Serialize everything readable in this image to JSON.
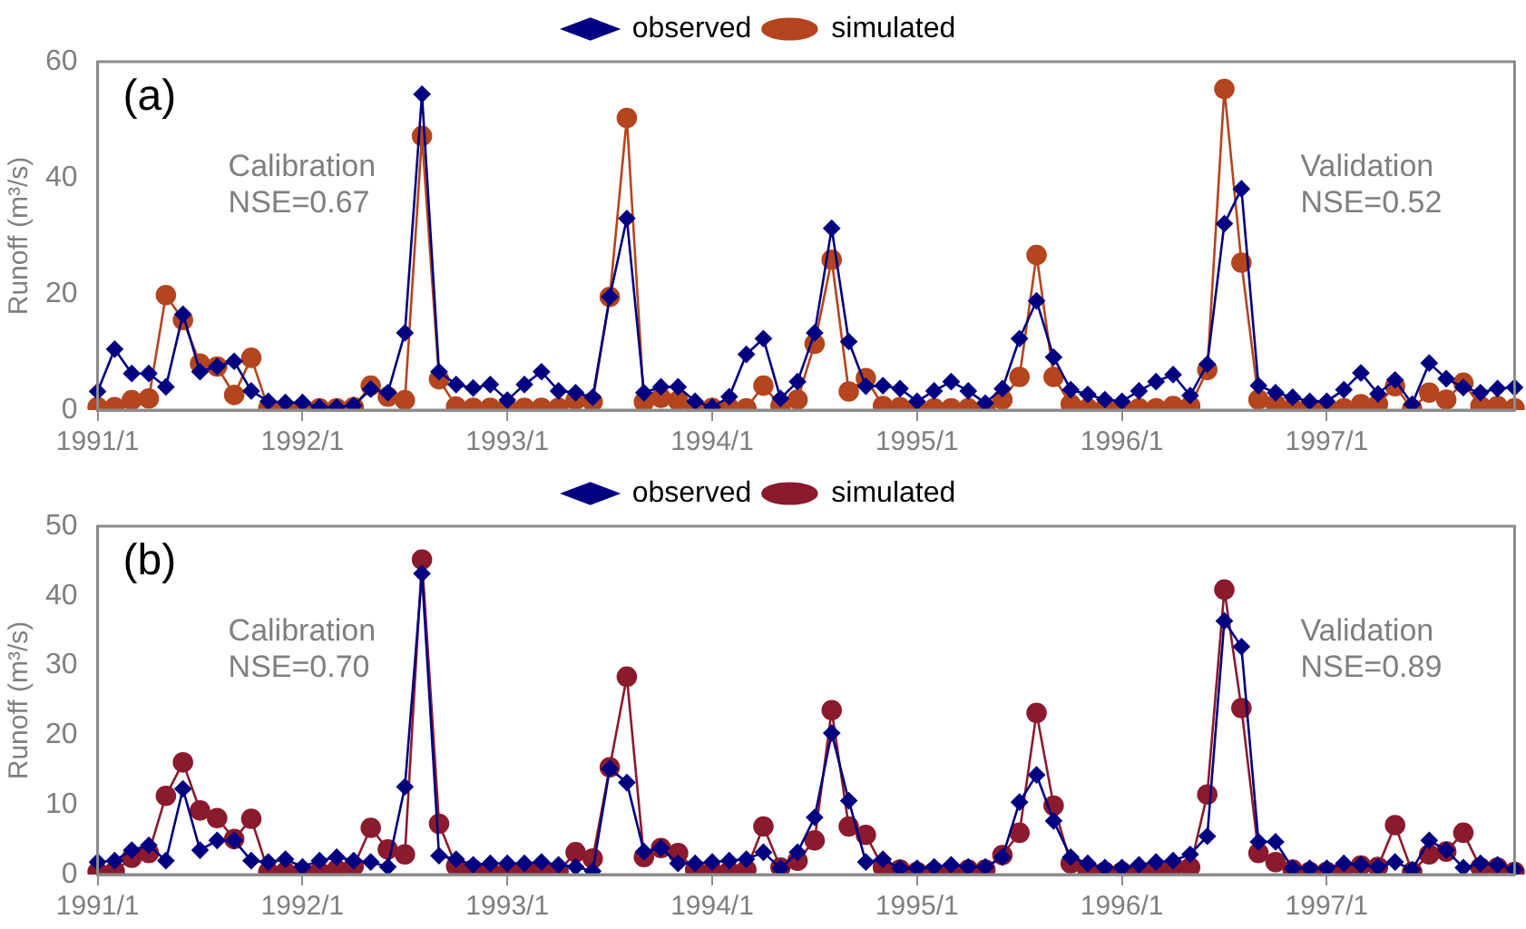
{
  "chart_data": [
    {
      "type": "line",
      "ylabel": "Runoff (m³/s)",
      "legend": "top",
      "grid": false,
      "ylim": [
        0,
        60
      ],
      "yticks": [
        0,
        20,
        40,
        60
      ],
      "categories": [
        "1991/1",
        null,
        null,
        null,
        null,
        null,
        null,
        null,
        null,
        null,
        null,
        null,
        "1992/1",
        null,
        null,
        null,
        null,
        null,
        null,
        null,
        null,
        null,
        null,
        null,
        "1993/1",
        null,
        null,
        null,
        null,
        null,
        null,
        null,
        null,
        null,
        null,
        null,
        "1994/1",
        null,
        null,
        null,
        null,
        null,
        null,
        null,
        null,
        null,
        null,
        null,
        "1995/1",
        null,
        null,
        null,
        null,
        null,
        null,
        null,
        null,
        null,
        null,
        null,
        "1996/1",
        null,
        null,
        null,
        null,
        null,
        null,
        null,
        null,
        null,
        null,
        null,
        "1997/1",
        null,
        null,
        null,
        null,
        null,
        null,
        null,
        null,
        null,
        null,
        null
      ],
      "annotations": [
        "(a)",
        "Calibration\nNSE=0.67",
        "Validation\nNSE=0.52"
      ],
      "series": [
        {
          "name": "observed",
          "color": "#000080",
          "marker": "diamond",
          "values": [
            3.2,
            10.5,
            6.3,
            6.3,
            4,
            16.5,
            6.6,
            7.5,
            8.4,
            3.3,
            1.5,
            1.3,
            1.3,
            0.5,
            0.5,
            0.8,
            3.6,
            3,
            13.3,
            54.4,
            6.6,
            4.4,
            3.8,
            4.4,
            1.7,
            4.4,
            6.6,
            3.3,
            3,
            2.2,
            19.5,
            33,
            3,
            4,
            4,
            1.5,
            0.5,
            2.3,
            9.6,
            12.3,
            2,
            4.9,
            13.3,
            31.3,
            11.8,
            4.1,
            4.2,
            3.7,
            1.5,
            3.3,
            4.9,
            3.3,
            1.2,
            3.7,
            12.3,
            18.8,
            9.1,
            3.5,
            2.7,
            1.8,
            1.5,
            3.3,
            4.9,
            6.1,
            2.5,
            7.9,
            32.1,
            38.1,
            4.2,
            3,
            2.2,
            1.5,
            1.5,
            3.5,
            6.4,
            2.8,
            5.2,
            1,
            8.1,
            5.4,
            3.9,
            3,
            3.7,
            3.9
          ]
        },
        {
          "name": "simulated",
          "color": "#b4451e",
          "marker": "circle",
          "values": [
            0.5,
            0.5,
            1.7,
            2,
            19.8,
            15.5,
            8,
            7.5,
            2.6,
            9,
            0.3,
            0.3,
            0.3,
            0.3,
            0.3,
            0.5,
            4.2,
            2.3,
            1.7,
            47.2,
            5.3,
            0.6,
            0.4,
            0.4,
            0.4,
            0.4,
            0.4,
            0.4,
            1.7,
            1.4,
            19.5,
            50.3,
            1.4,
            2.1,
            1.6,
            0.4,
            0.4,
            0.4,
            0.3,
            4.2,
            0.7,
            1.8,
            11.4,
            25.9,
            3.2,
            5.5,
            0.7,
            0.5,
            0.3,
            0.3,
            0.3,
            0.3,
            0.3,
            1.8,
            5.7,
            26.7,
            5.7,
            1,
            0.3,
            0.3,
            0.3,
            0.3,
            0.3,
            0.7,
            0.7,
            6.9,
            55.3,
            25.4,
            1.8,
            1,
            0.3,
            0.3,
            0.5,
            0.3,
            1,
            1,
            4.1,
            0.2,
            3,
            1.8,
            4.7,
            0.7,
            0.7,
            0.3
          ]
        }
      ]
    },
    {
      "type": "line",
      "ylabel": "Runoff (m³/s)",
      "legend": "top",
      "grid": false,
      "ylim": [
        0,
        50
      ],
      "yticks": [
        0,
        10,
        20,
        30,
        40,
        50
      ],
      "categories": [
        "1991/1",
        null,
        null,
        null,
        null,
        null,
        null,
        null,
        null,
        null,
        null,
        null,
        "1992/1",
        null,
        null,
        null,
        null,
        null,
        null,
        null,
        null,
        null,
        null,
        null,
        "1993/1",
        null,
        null,
        null,
        null,
        null,
        null,
        null,
        null,
        null,
        null,
        null,
        "1994/1",
        null,
        null,
        null,
        null,
        null,
        null,
        null,
        null,
        null,
        null,
        null,
        "1995/1",
        null,
        null,
        null,
        null,
        null,
        null,
        null,
        null,
        null,
        null,
        null,
        "1996/1",
        null,
        null,
        null,
        null,
        null,
        null,
        null,
        null,
        null,
        null,
        null,
        "1997/1",
        null,
        null,
        null,
        null,
        null,
        null,
        null,
        null,
        null,
        null,
        null
      ],
      "annotations": [
        "(b)",
        "Calibration\nNSE=0.70",
        "Validation\nNSE=0.89"
      ],
      "series": [
        {
          "name": "observed",
          "color": "#000080",
          "marker": "diamond",
          "values": [
            1.8,
            2,
            3.5,
            4.2,
            2,
            12.3,
            3.5,
            4.9,
            4.9,
            2,
            1.8,
            2.2,
            1.1,
            2,
            2.5,
            2,
            1.8,
            1.1,
            12.6,
            43.2,
            2.7,
            2.2,
            1.4,
            1.6,
            1.6,
            1.6,
            1.8,
            1.4,
            1.1,
            0.5,
            15.2,
            13.2,
            3.3,
            3.8,
            1.6,
            1.6,
            1.8,
            2,
            2.2,
            3.2,
            0.9,
            3.2,
            8.2,
            20.3,
            10.6,
            1.8,
            2.2,
            0.9,
            0.9,
            1.1,
            1.4,
            1.1,
            1.1,
            2.5,
            10.4,
            14.3,
            7.7,
            2.5,
            1.6,
            1,
            1,
            1.4,
            1.8,
            2,
            2.9,
            5.5,
            36.4,
            32.7,
            4.7,
            4.7,
            0.9,
            0.9,
            0.9,
            1.6,
            1.4,
            1.1,
            1.8,
            0.7,
            4.9,
            3.5,
            1,
            1.6,
            1.4,
            0.7
          ]
        },
        {
          "name": "simulated",
          "color": "#8b1a2e",
          "marker": "circle",
          "values": [
            0.4,
            0.5,
            2.4,
            3.1,
            11.3,
            16.1,
            9.2,
            8.1,
            5.1,
            8,
            0.4,
            0.4,
            0.4,
            0.4,
            0.7,
            1.2,
            6.7,
            3.6,
            2.9,
            45.2,
            7.3,
            1.2,
            0.7,
            0.4,
            0.5,
            0.7,
            0.7,
            0.4,
            3.2,
            2.3,
            15.4,
            28.4,
            2.5,
            3.8,
            3.1,
            0.7,
            0.5,
            0.5,
            0.7,
            6.9,
            1,
            2,
            4.9,
            23.6,
            6.9,
            5.7,
            1,
            0.7,
            0.4,
            0.4,
            0.4,
            0.7,
            0.7,
            2.8,
            6,
            23.2,
            9.9,
            1.6,
            0.4,
            0.4,
            0.4,
            0.5,
            0.5,
            1,
            1,
            11.5,
            40.9,
            23.9,
            3.1,
            1.8,
            0.7,
            0.4,
            0.4,
            0.7,
            1.3,
            1.1,
            7.1,
            0.4,
            2.9,
            3.3,
            6,
            1,
            1,
            0.4
          ]
        }
      ]
    }
  ]
}
